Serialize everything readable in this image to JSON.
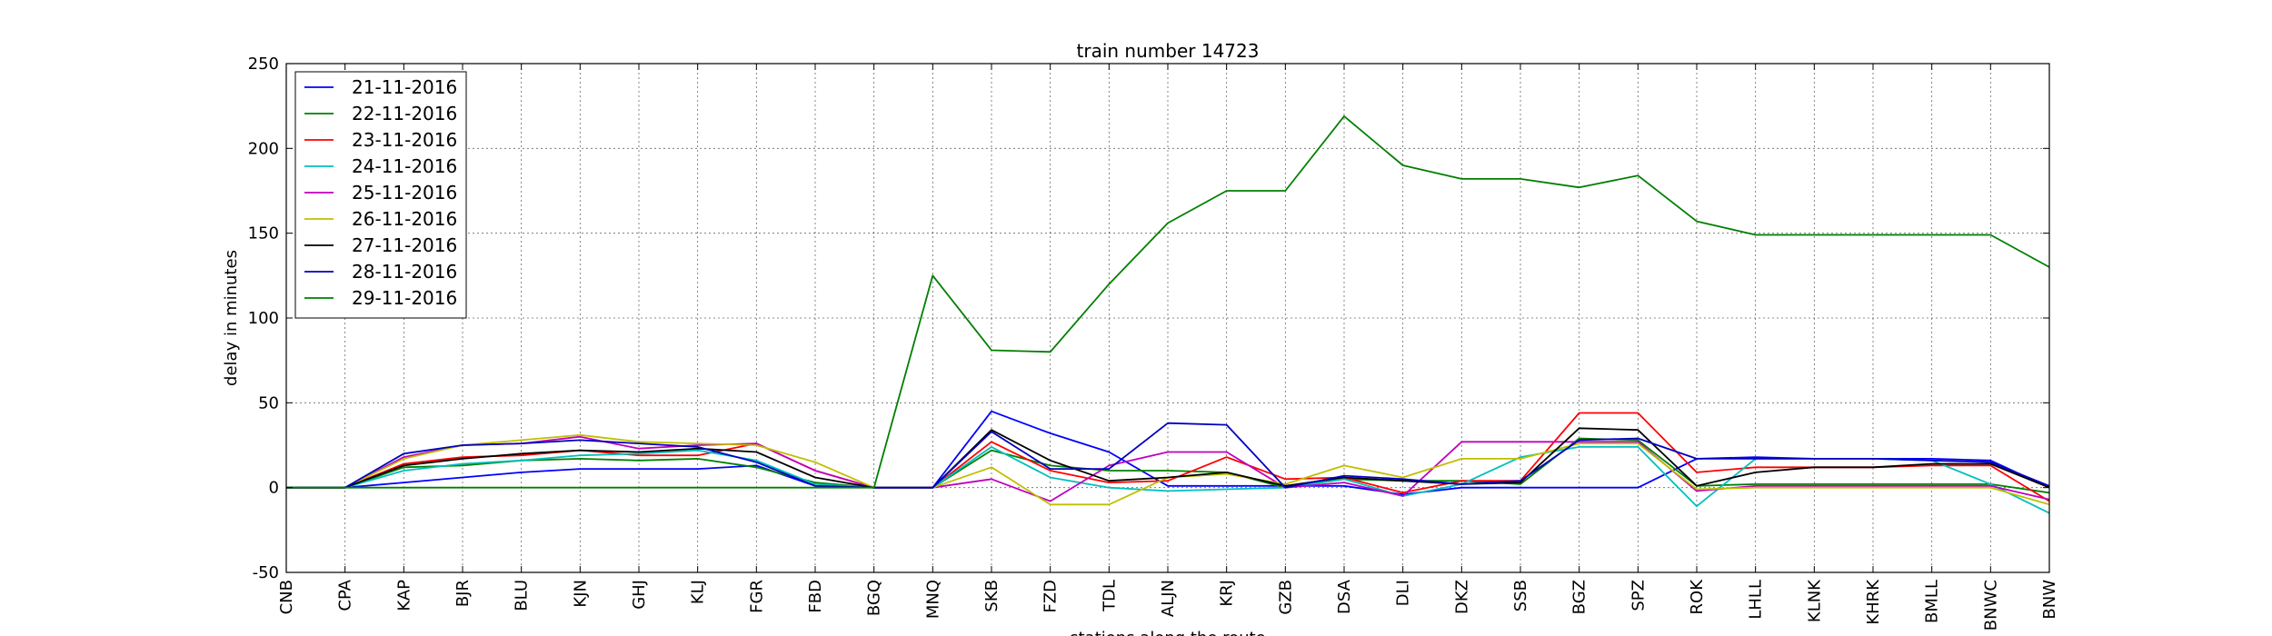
{
  "chart_data": {
    "type": "line",
    "title": "train number 14723",
    "xlabel": "stations along the route",
    "ylabel": "delay in minutes",
    "ylim": [
      -50,
      250
    ],
    "yticks": [
      -50,
      0,
      50,
      100,
      150,
      200,
      250
    ],
    "grid": true,
    "legend_position": "top-left",
    "categories": [
      "CNB",
      "CPA",
      "KAP",
      "BJR",
      "BLU",
      "KJN",
      "GHJ",
      "KLJ",
      "FGR",
      "FBD",
      "BGQ",
      "MNQ",
      "SKB",
      "FZD",
      "TDL",
      "ALJN",
      "KRJ",
      "GZB",
      "DSA",
      "DLI",
      "DKZ",
      "SSB",
      "BGZ",
      "SPZ",
      "ROK",
      "LHLL",
      "KLNK",
      "KHRK",
      "BMLL",
      "BNWC",
      "BNW"
    ],
    "series": [
      {
        "name": "21-11-2016",
        "color": "#0000ff",
        "values": [
          0,
          0,
          3,
          6,
          9,
          11,
          11,
          11,
          13,
          1,
          0,
          0,
          45,
          32,
          21,
          1,
          1,
          1,
          1,
          -4,
          0,
          0,
          0,
          0,
          17,
          18,
          17,
          17,
          17,
          16,
          0
        ]
      },
      {
        "name": "22-11-2016",
        "color": "#008000",
        "values": [
          0,
          0,
          12,
          13,
          16,
          17,
          16,
          17,
          12,
          3,
          0,
          0,
          22,
          13,
          10,
          10,
          9,
          0,
          5,
          4,
          4,
          2,
          29,
          28,
          1,
          2,
          2,
          2,
          2,
          2,
          -3
        ]
      },
      {
        "name": "23-11-2016",
        "color": "#ff0000",
        "values": [
          0,
          0,
          14,
          18,
          19,
          22,
          19,
          19,
          26,
          10,
          0,
          0,
          27,
          10,
          3,
          4,
          18,
          5,
          6,
          -3,
          4,
          4,
          44,
          44,
          9,
          12,
          12,
          12,
          13,
          13,
          -8
        ]
      },
      {
        "name": "24-11-2016",
        "color": "#00bfbf",
        "values": [
          0,
          0,
          10,
          14,
          16,
          19,
          20,
          22,
          16,
          2,
          0,
          0,
          24,
          6,
          0,
          -2,
          -1,
          0,
          5,
          -5,
          2,
          18,
          24,
          24,
          -11,
          17,
          17,
          17,
          16,
          2,
          -15
        ]
      },
      {
        "name": "25-11-2016",
        "color": "#bf00bf",
        "values": [
          0,
          0,
          18,
          25,
          26,
          30,
          23,
          25,
          26,
          10,
          0,
          0,
          5,
          -8,
          13,
          21,
          21,
          0,
          3,
          -5,
          27,
          27,
          27,
          27,
          -2,
          1,
          1,
          1,
          1,
          1,
          -7
        ]
      },
      {
        "name": "26-11-2016",
        "color": "#bfbf00",
        "values": [
          0,
          0,
          17,
          25,
          28,
          31,
          27,
          26,
          25,
          15,
          0,
          0,
          12,
          -10,
          -10,
          6,
          8,
          2,
          13,
          6,
          17,
          17,
          26,
          26,
          -1,
          0,
          0,
          0,
          0,
          0,
          -10
        ]
      },
      {
        "name": "27-11-2016",
        "color": "#000000",
        "values": [
          0,
          0,
          13,
          17,
          20,
          22,
          21,
          23,
          21,
          6,
          0,
          0,
          34,
          16,
          4,
          6,
          9,
          1,
          6,
          4,
          2,
          3,
          35,
          34,
          1,
          9,
          12,
          12,
          14,
          14,
          0
        ]
      },
      {
        "name": "28-11-2016",
        "color": "#0000bf",
        "values": [
          0,
          0,
          20,
          25,
          26,
          28,
          26,
          24,
          15,
          1,
          0,
          0,
          33,
          11,
          11,
          38,
          37,
          0,
          7,
          5,
          2,
          4,
          28,
          29,
          17,
          17,
          17,
          17,
          16,
          15,
          1
        ]
      },
      {
        "name": "29-11-2016",
        "color": "#007f00",
        "values": [
          0,
          0,
          0,
          0,
          0,
          0,
          0,
          0,
          0,
          0,
          0,
          125,
          81,
          80,
          120,
          156,
          175,
          175,
          219,
          190,
          182,
          182,
          177,
          184,
          157,
          149,
          149,
          149,
          149,
          149,
          130
        ]
      }
    ],
    "series_overrides_note": ""
  }
}
